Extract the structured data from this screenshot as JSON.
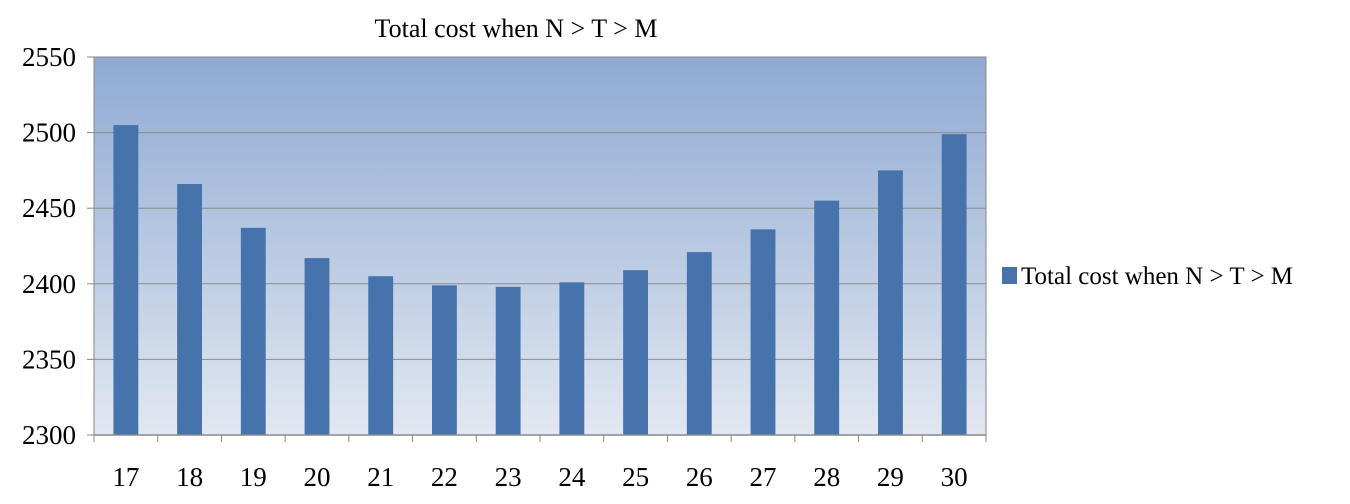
{
  "chart_data": {
    "type": "bar",
    "title": "Total cost when N > T > M",
    "xlabel": "",
    "ylabel": "",
    "categories": [
      "17",
      "18",
      "19",
      "20",
      "21",
      "22",
      "23",
      "24",
      "25",
      "26",
      "27",
      "28",
      "29",
      "30"
    ],
    "series": [
      {
        "name": "Total cost when N > T > M",
        "values": [
          2505,
          2466,
          2437,
          2417,
          2405,
          2399,
          2398,
          2401,
          2409,
          2421,
          2436,
          2455,
          2475,
          2499
        ],
        "color": "#4673AB"
      }
    ],
    "ylim": [
      2300,
      2550
    ],
    "yticks": [
      "2300",
      "2350",
      "2400",
      "2450",
      "2500",
      "2550"
    ],
    "grid": true,
    "legend_position": "right",
    "plot_background_top": "#8FAAD3",
    "plot_background_bottom": "#E2E8F1"
  }
}
